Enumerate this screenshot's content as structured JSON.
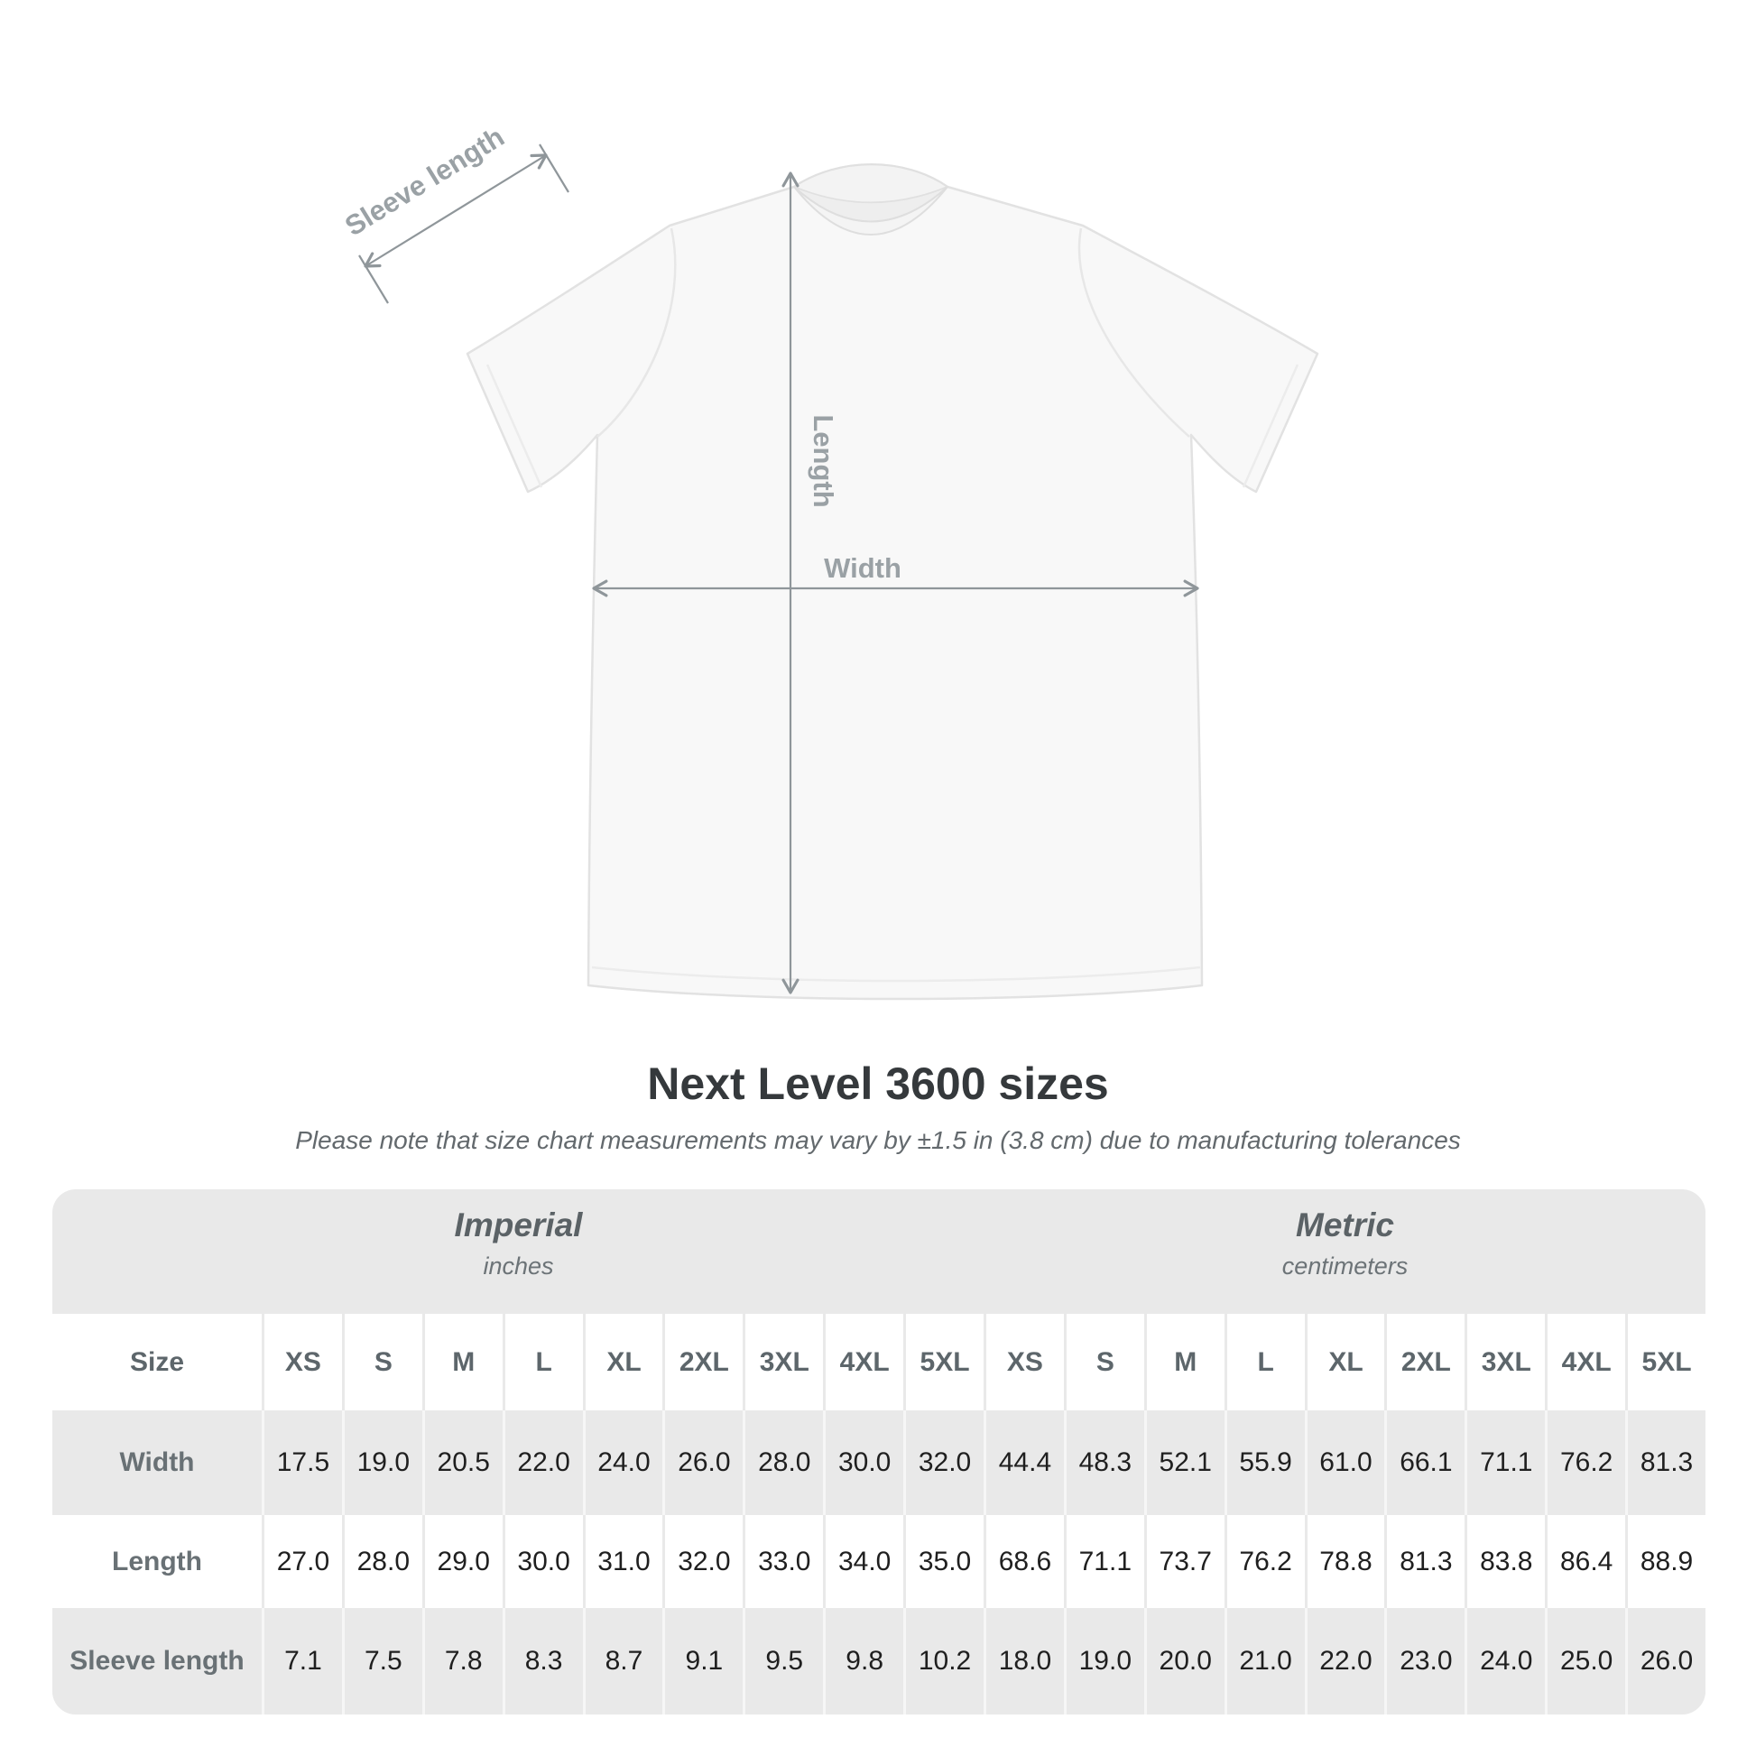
{
  "title": "Next Level 3600 sizes",
  "subtitle": "Please note that size chart measurements may vary by ±1.5 in (3.8 cm) due to manufacturing tolerances",
  "diagram": {
    "sleeve_label": "Sleeve length",
    "length_label": "Length",
    "width_label": "Width",
    "arrow_color": "#8f969a",
    "label_color": "#9aa1a5"
  },
  "size_table": {
    "unit_groups": [
      {
        "label": "Imperial",
        "sublabel": "inches"
      },
      {
        "label": "Metric",
        "sublabel": "centimeters"
      }
    ],
    "corner_header": "Size",
    "sizes": [
      "XS",
      "S",
      "M",
      "L",
      "XL",
      "2XL",
      "3XL",
      "4XL",
      "5XL"
    ],
    "rows": [
      {
        "label": "Width",
        "imperial": [
          "17.5",
          "19.0",
          "20.5",
          "22.0",
          "24.0",
          "26.0",
          "28.0",
          "30.0",
          "32.0"
        ],
        "metric": [
          "44.4",
          "48.3",
          "52.1",
          "55.9",
          "61.0",
          "66.1",
          "71.1",
          "76.2",
          "81.3"
        ]
      },
      {
        "label": "Length",
        "imperial": [
          "27.0",
          "28.0",
          "29.0",
          "30.0",
          "31.0",
          "32.0",
          "33.0",
          "34.0",
          "35.0"
        ],
        "metric": [
          "68.6",
          "71.1",
          "73.7",
          "76.2",
          "78.8",
          "81.3",
          "83.8",
          "86.4",
          "88.9"
        ]
      },
      {
        "label": "Sleeve length",
        "imperial": [
          "7.1",
          "7.5",
          "7.8",
          "8.3",
          "8.7",
          "9.1",
          "9.5",
          "9.8",
          "10.2"
        ],
        "metric": [
          "18.0",
          "19.0",
          "20.0",
          "21.0",
          "22.0",
          "23.0",
          "24.0",
          "25.0",
          "26.0"
        ]
      }
    ]
  },
  "chart_data": {
    "type": "table",
    "title": "Next Level 3600 sizes",
    "unit_systems": [
      "inches",
      "centimeters"
    ],
    "sizes": [
      "XS",
      "S",
      "M",
      "L",
      "XL",
      "2XL",
      "3XL",
      "4XL",
      "5XL"
    ],
    "measurements": {
      "Width": {
        "inches": [
          17.5,
          19.0,
          20.5,
          22.0,
          24.0,
          26.0,
          28.0,
          30.0,
          32.0
        ],
        "centimeters": [
          44.4,
          48.3,
          52.1,
          55.9,
          61.0,
          66.1,
          71.1,
          76.2,
          81.3
        ]
      },
      "Length": {
        "inches": [
          27.0,
          28.0,
          29.0,
          30.0,
          31.0,
          32.0,
          33.0,
          34.0,
          35.0
        ],
        "centimeters": [
          68.6,
          71.1,
          73.7,
          76.2,
          78.8,
          81.3,
          83.8,
          86.4,
          88.9
        ]
      },
      "Sleeve length": {
        "inches": [
          7.1,
          7.5,
          7.8,
          8.3,
          8.7,
          9.1,
          9.5,
          9.8,
          10.2
        ],
        "centimeters": [
          18.0,
          19.0,
          20.0,
          21.0,
          22.0,
          23.0,
          24.0,
          25.0,
          26.0
        ]
      }
    }
  }
}
